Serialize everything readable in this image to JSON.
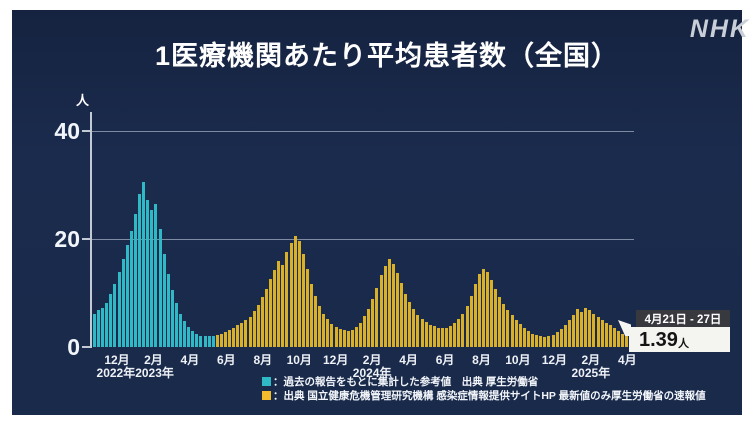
{
  "header": {
    "title": "1医療機関あたり平均患者数（全国）",
    "logo": "NHK"
  },
  "chart": {
    "unit_label": "人",
    "legend": [
      {
        "color": "#2fb9c7",
        "label": "：過去の報告をもとに集計した参考値　出典 厚生労働省"
      },
      {
        "color": "#f2bb2d",
        "label": "：出典 国立健康危機管理研究機構 感染症情報提供サイトHP 最新値のみ厚生労働省の速報値"
      }
    ],
    "callout": {
      "date_range": "4月21日 - 27日",
      "value": "1.39",
      "value_unit": "人"
    }
  },
  "chart_data": {
    "type": "bar",
    "title": "1医療機関あたり平均患者数（全国）",
    "ylabel": "人",
    "ylim": [
      0,
      42
    ],
    "y_ticks": [
      0,
      20,
      40
    ],
    "y_gridlines": [
      20,
      40
    ],
    "x_tick_labels": [
      "12月",
      "2月",
      "4月",
      "6月",
      "8月",
      "10月",
      "12月",
      "2月",
      "4月",
      "6月",
      "8月",
      "10月",
      "12月",
      "2月",
      "4月"
    ],
    "year_labels": [
      {
        "text": "2022年2023年",
        "tick_index": 0.5
      },
      {
        "text": "2024年",
        "tick_index": 7
      },
      {
        "text": "2025年",
        "tick_index": 13
      }
    ],
    "series": [
      {
        "name": "過去の報告をもとに集計した参考値",
        "color": "#2fb9c7",
        "values": [
          6.2,
          6.8,
          7.3,
          8.2,
          9.8,
          11.6,
          13.8,
          16.2,
          18.8,
          21.4,
          24.6,
          28.3,
          30.5,
          27.2,
          25.3,
          26.4,
          21.8,
          17.3,
          13.6,
          10.6,
          8.1,
          6.2,
          4.8,
          3.7,
          2.9,
          2.4,
          2.1,
          2.0,
          2.0,
          2.1
        ]
      },
      {
        "name": "感染症情報提供サイト報告値",
        "color": "#d9b02a",
        "values": [
          2.2,
          2.4,
          2.7,
          3.1,
          3.5,
          4.0,
          4.5,
          5.0,
          5.6,
          6.6,
          7.8,
          9.3,
          10.8,
          12.5,
          14.3,
          16.0,
          15.1,
          17.6,
          19.2,
          20.5,
          19.6,
          17.2,
          14.5,
          11.7,
          9.4,
          7.5,
          6.2,
          5.1,
          4.3,
          3.7,
          3.3,
          3.1,
          3.0,
          3.2,
          3.7,
          4.5,
          5.7,
          7.1,
          8.8,
          11.0,
          13.3,
          15.0,
          16.2,
          15.3,
          13.7,
          11.8,
          9.9,
          8.3,
          7.0,
          6.0,
          5.2,
          4.6,
          4.1,
          3.8,
          3.6,
          3.5,
          3.6,
          3.9,
          4.4,
          5.2,
          6.2,
          7.6,
          9.4,
          11.6,
          13.6,
          14.5,
          13.8,
          12.4,
          10.8,
          9.3,
          8.0,
          6.9,
          5.9,
          5.0,
          4.2,
          3.5,
          2.9,
          2.5,
          2.2,
          2.0,
          1.9,
          2.0,
          2.3,
          2.7,
          3.3,
          4.1,
          5.0,
          6.0,
          7.0,
          6.4,
          7.3,
          6.8,
          6.2,
          5.6,
          5.0,
          4.5,
          4.0,
          3.5,
          3.0,
          2.5,
          2.1
        ]
      },
      {
        "name": "最新値（厚生労働省の速報値）",
        "color": "#e0938c",
        "values": [
          1.39
        ]
      }
    ]
  }
}
